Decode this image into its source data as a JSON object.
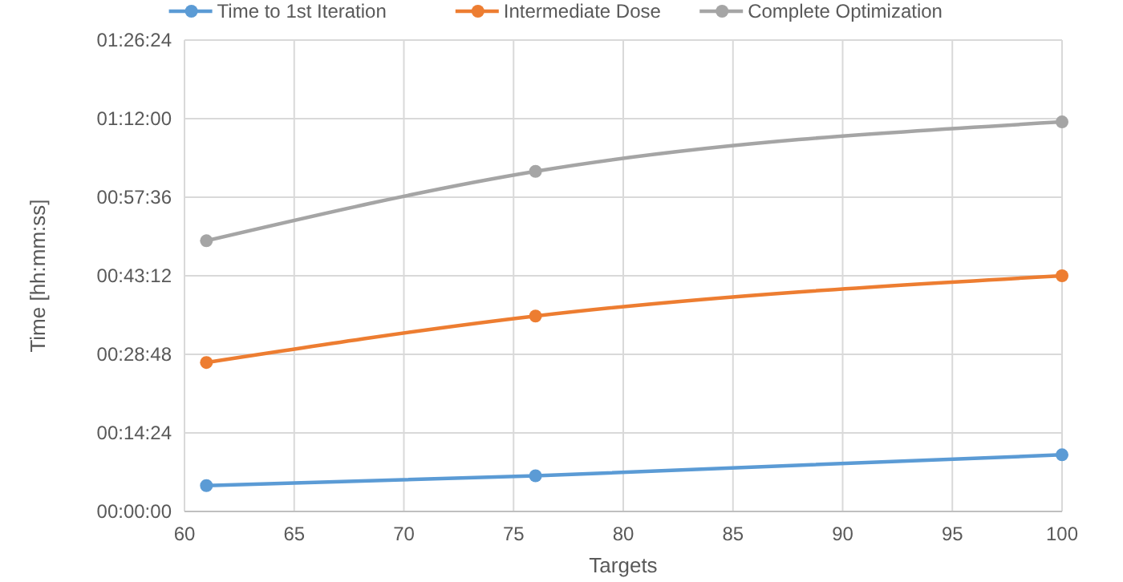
{
  "chart_data": {
    "type": "line",
    "xlabel": "Targets",
    "ylabel": "Time [hh:mm:ss]",
    "x": [
      61,
      76,
      100
    ],
    "series": [
      {
        "name": "Time to 1st Iteration",
        "color": "#5b9bd5",
        "values": [
          0.079,
          0.109,
          0.173
        ]
      },
      {
        "name": "Intermediate Dose",
        "color": "#ed7d31",
        "values": [
          0.455,
          0.597,
          0.72
        ]
      },
      {
        "name": "Complete Optimization",
        "color": "#a5a5a5",
        "values": [
          0.827,
          1.039,
          1.19
        ]
      }
    ],
    "xlim": [
      60,
      100
    ],
    "xticks": [
      60,
      65,
      70,
      75,
      80,
      85,
      90,
      95,
      100
    ],
    "ylim": [
      0,
      1.44
    ],
    "yticks": [
      {
        "value": 0,
        "label": "00:00:00"
      },
      {
        "value": 0.24,
        "label": "00:14:24"
      },
      {
        "value": 0.48,
        "label": "00:28:48"
      },
      {
        "value": 0.72,
        "label": "00:43:12"
      },
      {
        "value": 0.96,
        "label": "00:57:36"
      },
      {
        "value": 1.2,
        "label": "01:12:00"
      },
      {
        "value": 1.44,
        "label": "01:26:24"
      }
    ],
    "grid": true,
    "legend": "top",
    "marker": "circle",
    "line_style": "solid"
  }
}
